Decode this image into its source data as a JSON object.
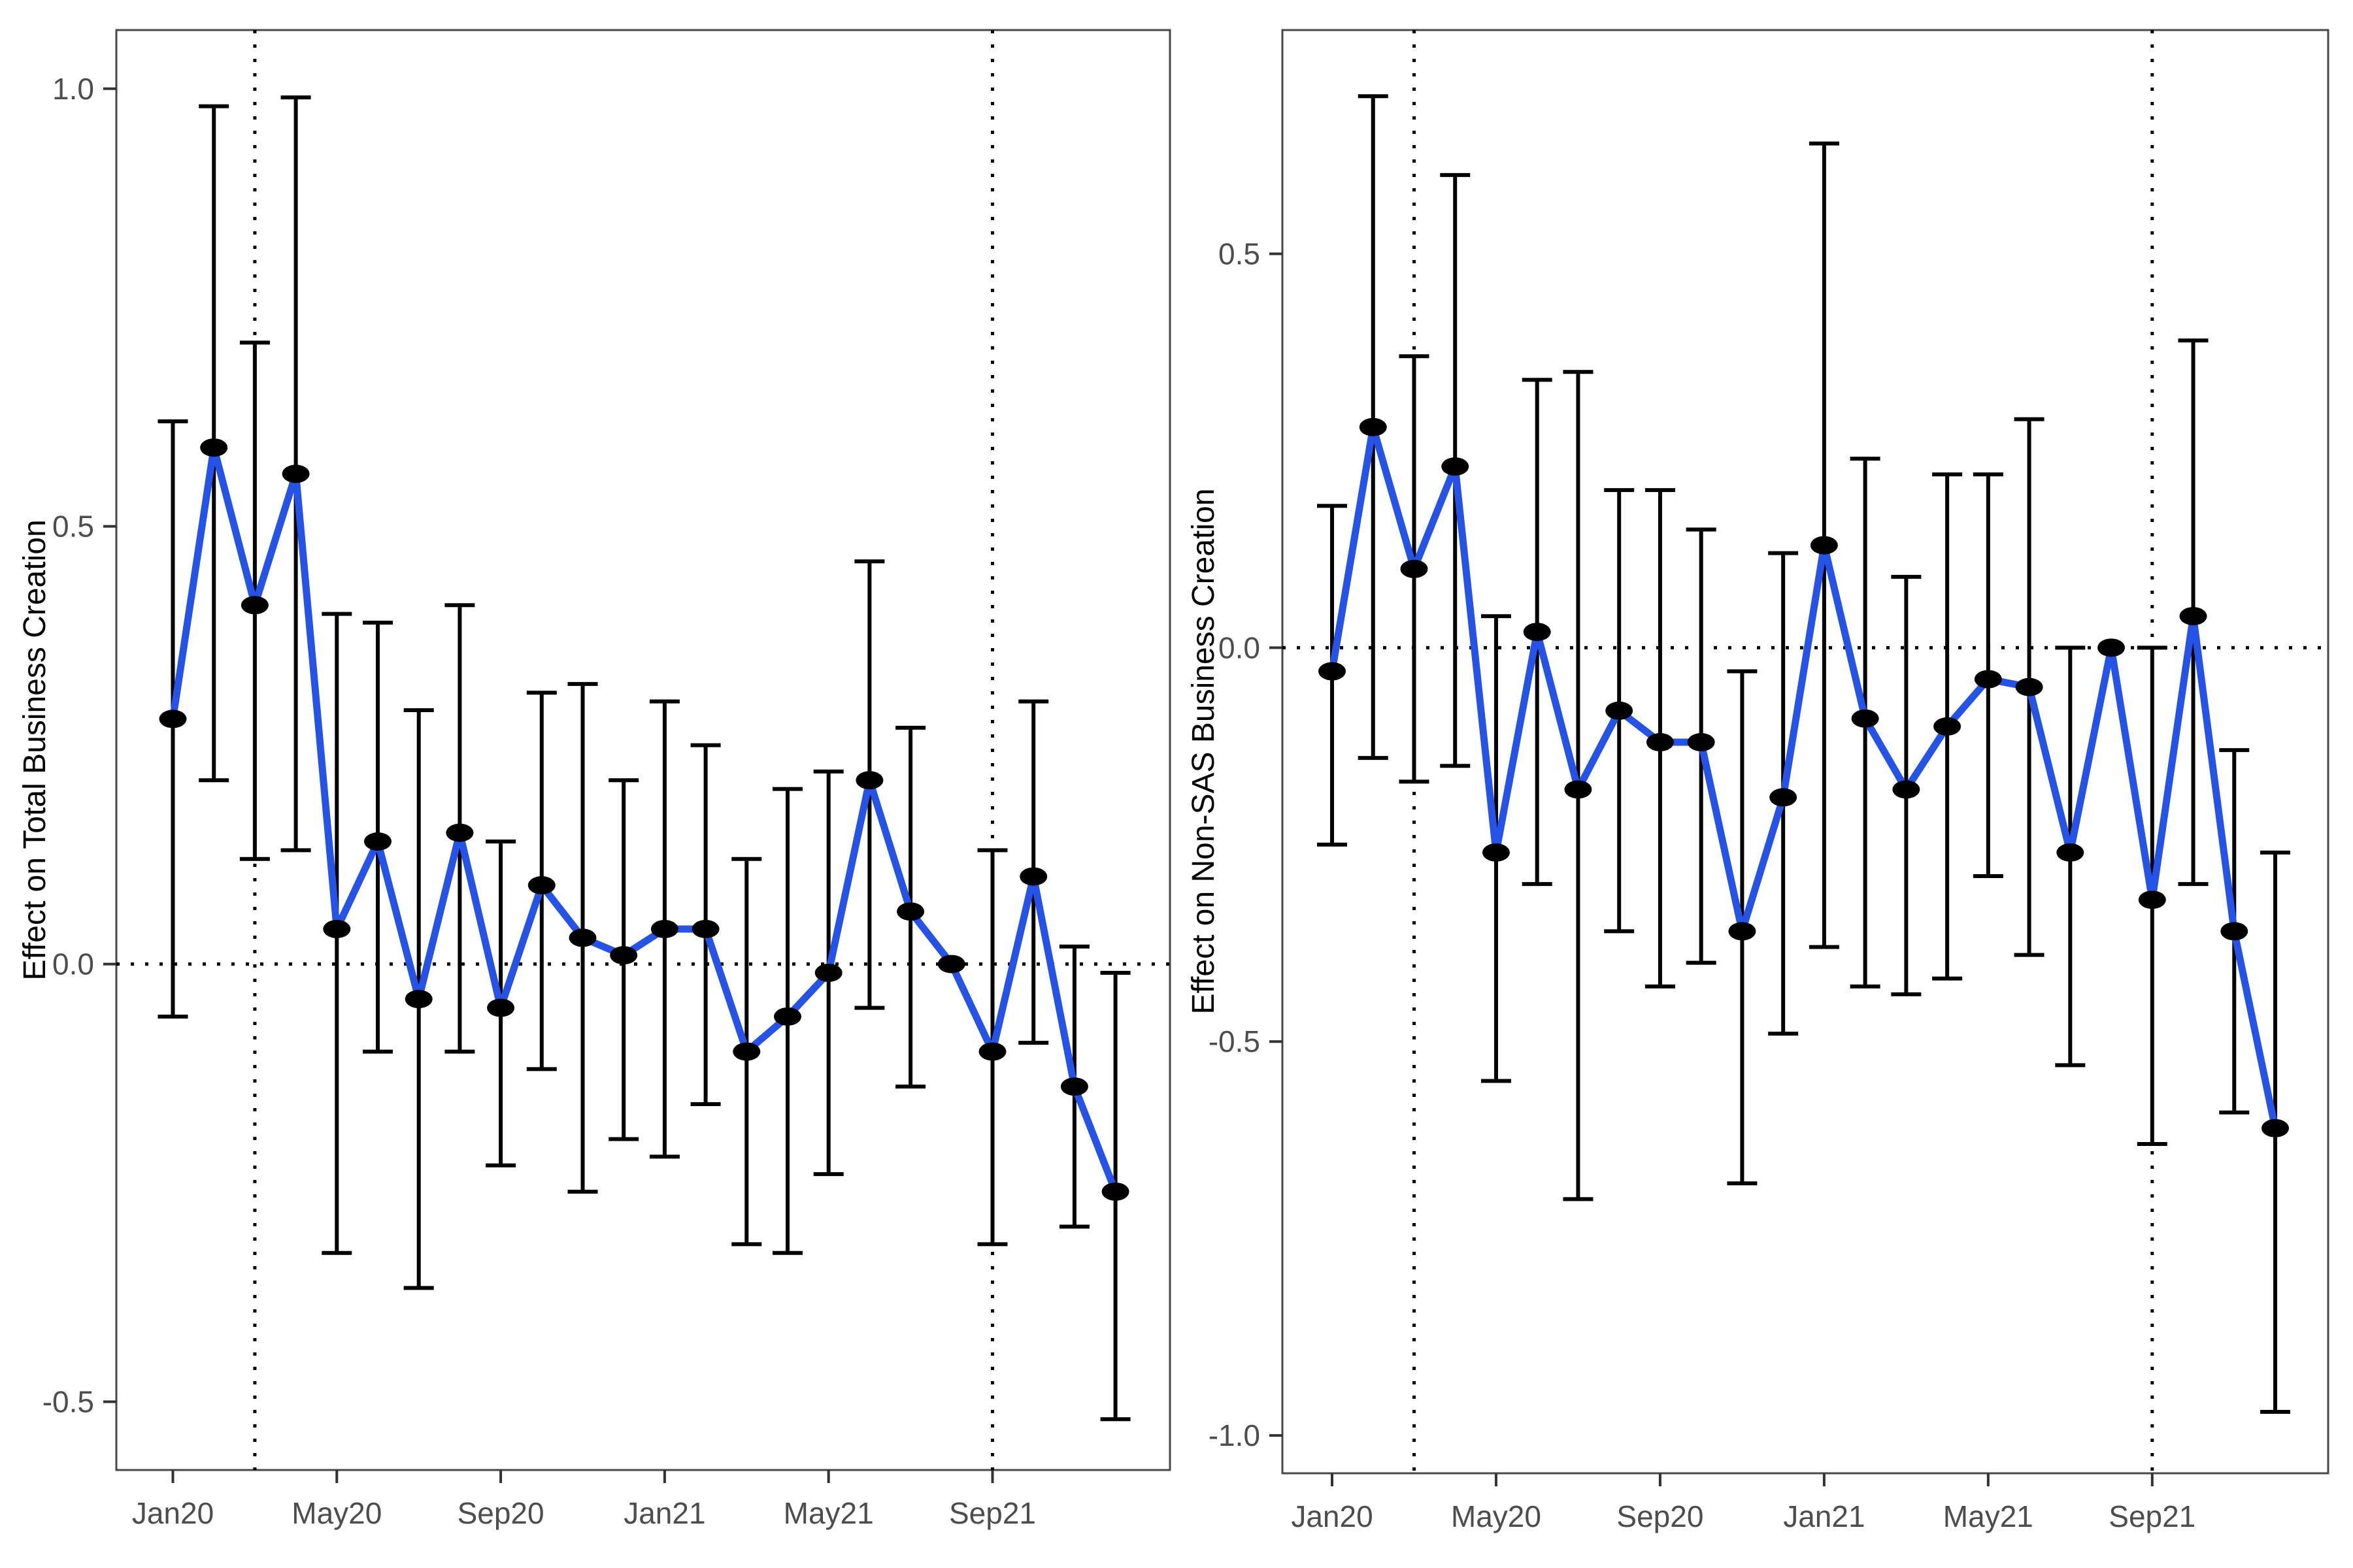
{
  "figure": {
    "kind": "two-panel event-study figure",
    "background": "#ffffff",
    "panel_count": 2
  },
  "colors": {
    "line": "#2553E8",
    "point": "#000000",
    "error_bar": "#000000",
    "reference_line": "#000000",
    "panel_border": "#474747",
    "tick_mark": "#333333",
    "tick_label": "#4D4D4D",
    "axis_title": "#000000"
  },
  "chart_data": [
    {
      "type": "line",
      "subtype": "pointrange-errorbar",
      "panel": "left",
      "title": "",
      "xlabel": "",
      "ylabel": "Effect on Total Business Creation",
      "categories": [
        "Jan20",
        "Feb20",
        "Mar20",
        "Apr20",
        "May20",
        "Jun20",
        "Jul20",
        "Aug20",
        "Sep20",
        "Oct20",
        "Nov20",
        "Dec20",
        "Jan21",
        "Feb21",
        "Mar21",
        "Apr21",
        "May21",
        "Jun21",
        "Jul21",
        "Aug21",
        "Sep21",
        "Oct21",
        "Nov21",
        "Dec21"
      ],
      "values": [
        0.28,
        0.59,
        0.41,
        0.56,
        0.04,
        0.14,
        -0.04,
        0.15,
        -0.05,
        0.09,
        0.03,
        0.01,
        0.04,
        0.04,
        -0.1,
        -0.06,
        -0.01,
        0.21,
        0.06,
        0.0,
        -0.1,
        0.1,
        -0.14,
        -0.26
      ],
      "ci_low": [
        -0.06,
        0.21,
        0.12,
        0.13,
        -0.33,
        -0.1,
        -0.37,
        -0.1,
        -0.23,
        -0.12,
        -0.26,
        -0.2,
        -0.22,
        -0.16,
        -0.32,
        -0.33,
        -0.24,
        -0.05,
        -0.14,
        0.0,
        -0.32,
        -0.09,
        -0.3,
        -0.52
      ],
      "ci_high": [
        0.62,
        0.98,
        0.71,
        0.99,
        0.4,
        0.39,
        0.29,
        0.41,
        0.14,
        0.31,
        0.32,
        0.21,
        0.3,
        0.25,
        0.12,
        0.2,
        0.22,
        0.46,
        0.27,
        0.0,
        0.13,
        0.3,
        0.02,
        -0.01
      ],
      "reference_month": "Aug21",
      "reference_index": 19,
      "x_tick_labels": [
        "Jan20",
        "May20",
        "Sep20",
        "Jan21",
        "May21",
        "Sep21"
      ],
      "x_tick_indices": [
        0,
        4,
        8,
        12,
        16,
        20
      ],
      "y_ticks": [
        1.0,
        0.5,
        0.0,
        -0.5
      ],
      "y_tick_labels": [
        "1.0",
        "0.5",
        "0.0",
        "-0.5"
      ],
      "ylim": [
        -0.578,
        1.067
      ],
      "hline": 0.0,
      "vline_months": [
        "Mar20",
        "Sep21"
      ],
      "vline_indices": [
        2,
        20
      ],
      "grid": false,
      "legend": "none"
    },
    {
      "type": "line",
      "subtype": "pointrange-errorbar",
      "panel": "right",
      "title": "",
      "xlabel": "",
      "ylabel": "Effect on Non-SAS Business Creation",
      "categories": [
        "Jan20",
        "Feb20",
        "Mar20",
        "Apr20",
        "May20",
        "Jun20",
        "Jul20",
        "Aug20",
        "Sep20",
        "Oct20",
        "Nov20",
        "Dec20",
        "Jan21",
        "Feb21",
        "Mar21",
        "Apr21",
        "May21",
        "Jun21",
        "Jul21",
        "Aug21",
        "Sep21",
        "Oct21",
        "Nov21",
        "Dec21"
      ],
      "values": [
        -0.03,
        0.28,
        0.1,
        0.23,
        -0.26,
        0.02,
        -0.18,
        -0.08,
        -0.12,
        -0.12,
        -0.36,
        -0.19,
        0.13,
        -0.09,
        -0.18,
        -0.1,
        -0.04,
        -0.05,
        -0.26,
        0.0,
        -0.32,
        0.04,
        -0.36,
        -0.61
      ],
      "ci_low": [
        -0.25,
        -0.14,
        -0.17,
        -0.15,
        -0.55,
        -0.3,
        -0.7,
        -0.36,
        -0.43,
        -0.4,
        -0.68,
        -0.49,
        -0.38,
        -0.43,
        -0.44,
        -0.42,
        -0.29,
        -0.39,
        -0.53,
        0.0,
        -0.63,
        -0.3,
        -0.59,
        -0.97
      ],
      "ci_high": [
        0.18,
        0.7,
        0.37,
        0.6,
        0.04,
        0.34,
        0.35,
        0.2,
        0.2,
        0.15,
        -0.03,
        0.12,
        0.64,
        0.24,
        0.09,
        0.22,
        0.22,
        0.29,
        0.0,
        0.0,
        0.0,
        0.39,
        -0.13,
        -0.26
      ],
      "reference_month": "Aug21",
      "reference_index": 19,
      "x_tick_labels": [
        "Jan20",
        "May20",
        "Sep20",
        "Jan21",
        "May21",
        "Sep21"
      ],
      "x_tick_indices": [
        0,
        4,
        8,
        12,
        16,
        20
      ],
      "y_ticks": [
        0.5,
        0.0,
        -0.5,
        -1.0
      ],
      "y_tick_labels": [
        "0.5",
        "0.0",
        "-0.5",
        "-1.0"
      ],
      "ylim": [
        -1.048,
        0.784
      ],
      "hline": 0.0,
      "vline_months": [
        "Mar20",
        "Sep21"
      ],
      "vline_indices": [
        2,
        20
      ],
      "grid": false,
      "legend": "none"
    }
  ]
}
